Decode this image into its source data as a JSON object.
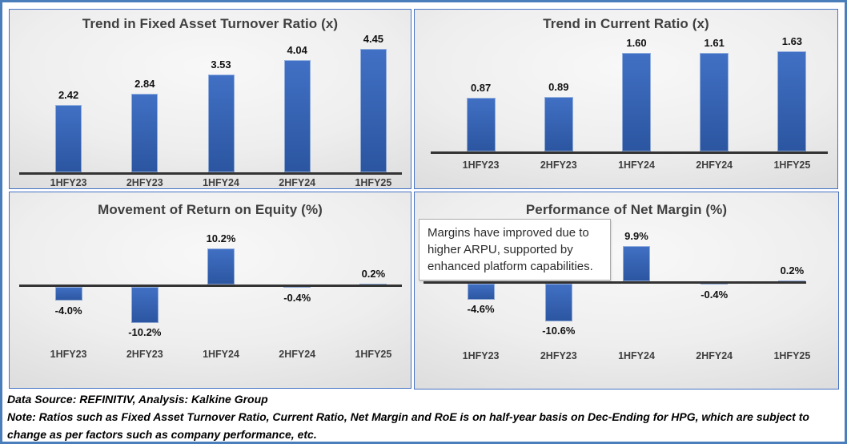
{
  "colors": {
    "accent_blue": "#4A7EBB",
    "panel_border": "#4472C4",
    "bar_top": "#4170C4",
    "bar_bottom": "#2B55A0",
    "axis_line": "#333333",
    "title_text": "#3F3F3F"
  },
  "chart_data": [
    {
      "type": "bar",
      "title": "Trend in Fixed Asset Turnover Ratio (x)",
      "categories": [
        "1HFY23",
        "2HFY23",
        "1HFY24",
        "2HFY24",
        "1HFY25"
      ],
      "values": [
        2.42,
        2.84,
        3.53,
        4.04,
        4.45
      ],
      "labels": [
        "2.42",
        "2.84",
        "3.53",
        "4.04",
        "4.45"
      ],
      "xlabel": "",
      "ylabel": "",
      "ylim": [
        0,
        5
      ],
      "grid": false,
      "legend": null
    },
    {
      "type": "bar",
      "title": "Trend in Current Ratio (x)",
      "categories": [
        "1HFY23",
        "2HFY23",
        "1HFY24",
        "2HFY24",
        "1HFY25"
      ],
      "values": [
        0.87,
        0.89,
        1.6,
        1.61,
        1.63
      ],
      "labels": [
        "0.87",
        "0.89",
        "1.60",
        "1.61",
        "1.63"
      ],
      "xlabel": "",
      "ylabel": "",
      "ylim": [
        0,
        1.8
      ],
      "grid": false,
      "legend": null
    },
    {
      "type": "bar",
      "title": "Movement of Return on Equity (%)",
      "categories": [
        "1HFY23",
        "2HFY23",
        "1HFY24",
        "2HFY24",
        "1HFY25"
      ],
      "values": [
        -4.0,
        -10.2,
        10.2,
        -0.4,
        0.2
      ],
      "labels": [
        "-4.0%",
        "-10.2%",
        "10.2%",
        "-0.4%",
        "0.2%"
      ],
      "xlabel": "",
      "ylabel": "",
      "ylim": [
        -12,
        12
      ],
      "grid": false,
      "legend": null
    },
    {
      "type": "bar",
      "title": "Performance of Net Margin (%)",
      "categories": [
        "1HFY23",
        "2HFY23",
        "1HFY24",
        "2HFY24",
        "1HFY25"
      ],
      "values": [
        -4.6,
        -10.6,
        9.9,
        -0.4,
        0.2
      ],
      "labels": [
        "-4.6%",
        "-10.6%",
        "9.9%",
        "-0.4%",
        "0.2%"
      ],
      "xlabel": "",
      "ylabel": "",
      "ylim": [
        -12,
        12
      ],
      "grid": false,
      "legend": null,
      "annotation": "Margins have improved due to higher ARPU, supported by enhanced platform capabilities."
    }
  ],
  "footer": {
    "source": "Data Source: REFINITIV, Analysis: Kalkine Group",
    "note": "Note: Ratios such as Fixed Asset Turnover Ratio, Current Ratio, Net Margin and RoE is on half-year basis on Dec-Ending for HPG, which are subject to change as per factors such as company performance, etc."
  }
}
